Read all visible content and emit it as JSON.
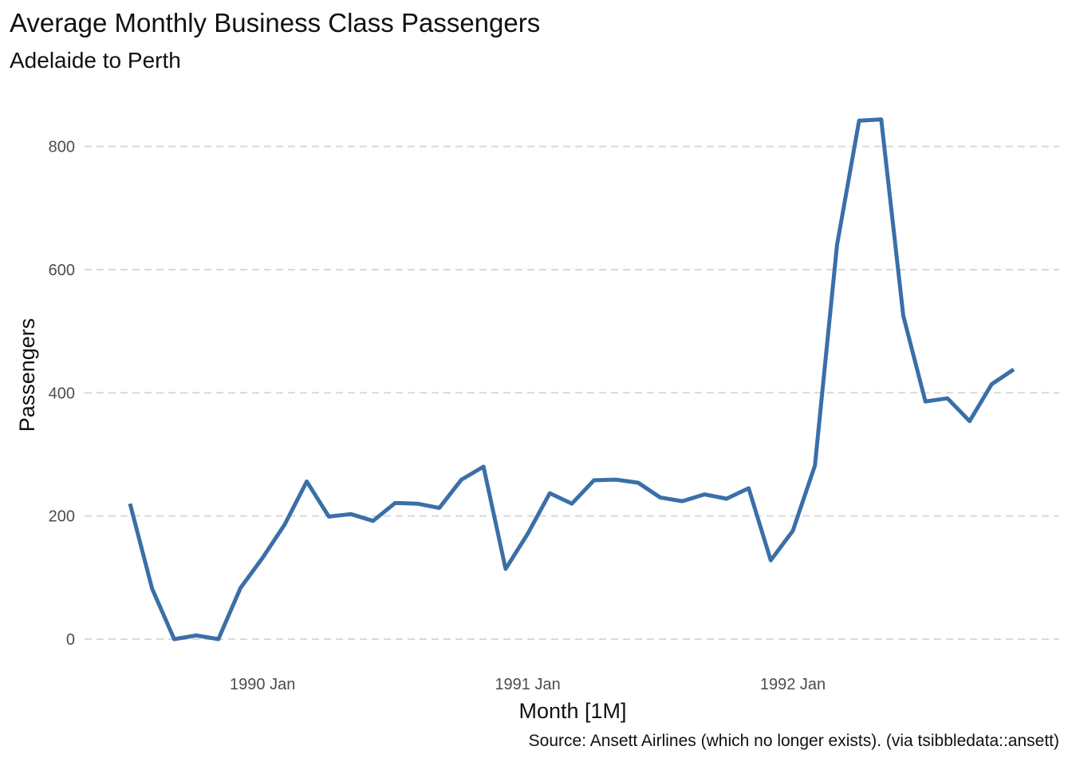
{
  "chart_data": {
    "type": "line",
    "title": "Average Monthly Business Class Passengers",
    "subtitle": "Adelaide to Perth",
    "xlabel": "Month [1M]",
    "ylabel": "Passengers",
    "caption": "Source: Ansett Airlines (which no longer exists). (via tsibbledata::ansett)",
    "x": [
      "1989 Jul",
      "1989 Aug",
      "1989 Sep",
      "1989 Oct",
      "1989 Nov",
      "1989 Dec",
      "1990 Jan",
      "1990 Feb",
      "1990 Mar",
      "1990 Apr",
      "1990 May",
      "1990 Jun",
      "1990 Jul",
      "1990 Aug",
      "1990 Sep",
      "1990 Oct",
      "1990 Nov",
      "1990 Dec",
      "1991 Jan",
      "1991 Feb",
      "1991 Mar",
      "1991 Apr",
      "1991 May",
      "1991 Jun",
      "1991 Jul",
      "1991 Aug",
      "1991 Sep",
      "1991 Oct",
      "1991 Nov",
      "1991 Dec",
      "1992 Jan",
      "1992 Feb",
      "1992 Mar",
      "1992 Apr",
      "1992 May",
      "1992 Jun",
      "1992 Jul",
      "1992 Aug",
      "1992 Sep",
      "1992 Oct",
      "1992 Nov"
    ],
    "series": [
      {
        "color": "#3a6fa8",
        "values": [
          220,
          82,
          0,
          6,
          0,
          83,
          132,
          186,
          256,
          199,
          203,
          192,
          221,
          220,
          213,
          259,
          280,
          114,
          171,
          237,
          220,
          258,
          259,
          254,
          230,
          224,
          235,
          228,
          245,
          128,
          176,
          282,
          640,
          842,
          844,
          525,
          386,
          391,
          354,
          414,
          438
        ]
      }
    ],
    "y_ticks": [
      "0",
      "200",
      "400",
      "600",
      "800"
    ],
    "x_ticks": [
      "1990 Jan",
      "1991 Jan",
      "1992 Jan"
    ],
    "ylim": [
      -35,
      885
    ],
    "grid": "horizontal-dashed",
    "legend": "none"
  }
}
